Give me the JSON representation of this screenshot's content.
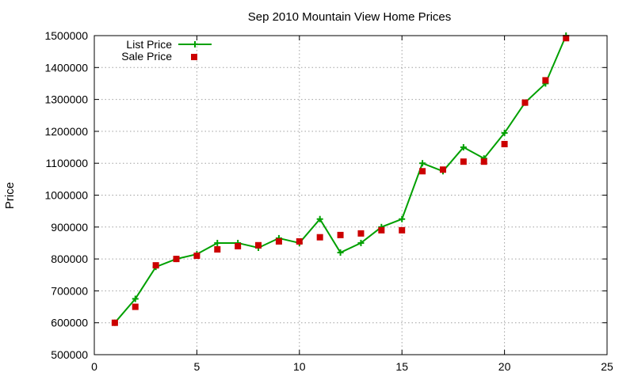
{
  "chart_data": {
    "type": "line",
    "title": "Sep 2010 Mountain View Home Prices",
    "xlabel": "",
    "ylabel": "Price",
    "xlim": [
      0,
      25
    ],
    "ylim": [
      500000,
      1500000
    ],
    "x_ticks": [
      0,
      5,
      10,
      15,
      20,
      25
    ],
    "y_ticks": [
      500000,
      600000,
      700000,
      800000,
      900000,
      1000000,
      1100000,
      1200000,
      1300000,
      1400000,
      1500000
    ],
    "grid": true,
    "legend_position": "top-left",
    "series": [
      {
        "name": "List Price",
        "style": "line-points",
        "color": "#00a000",
        "marker": "plus",
        "x": [
          1,
          2,
          3,
          4,
          5,
          6,
          7,
          8,
          9,
          10,
          11,
          12,
          13,
          14,
          15,
          16,
          17,
          18,
          19,
          20,
          21,
          22,
          23
        ],
        "values": [
          600000,
          675000,
          775000,
          800000,
          815000,
          850000,
          850000,
          835000,
          865000,
          850000,
          925000,
          820000,
          850000,
          900000,
          925000,
          1100000,
          1075000,
          1150000,
          1115000,
          1195000,
          1290000,
          1350000,
          1500000
        ]
      },
      {
        "name": "Sale Price",
        "style": "points",
        "color": "#cc0000",
        "marker": "square",
        "x": [
          1,
          2,
          3,
          4,
          5,
          6,
          7,
          8,
          9,
          10,
          11,
          12,
          13,
          14,
          15,
          16,
          17,
          18,
          19,
          20,
          21,
          22,
          23
        ],
        "values": [
          600000,
          650000,
          780000,
          800000,
          810000,
          830000,
          840000,
          843000,
          855000,
          855000,
          868000,
          875000,
          880000,
          890000,
          890000,
          1075000,
          1080000,
          1105000,
          1105000,
          1160000,
          1290000,
          1360000,
          1492000
        ]
      }
    ]
  }
}
